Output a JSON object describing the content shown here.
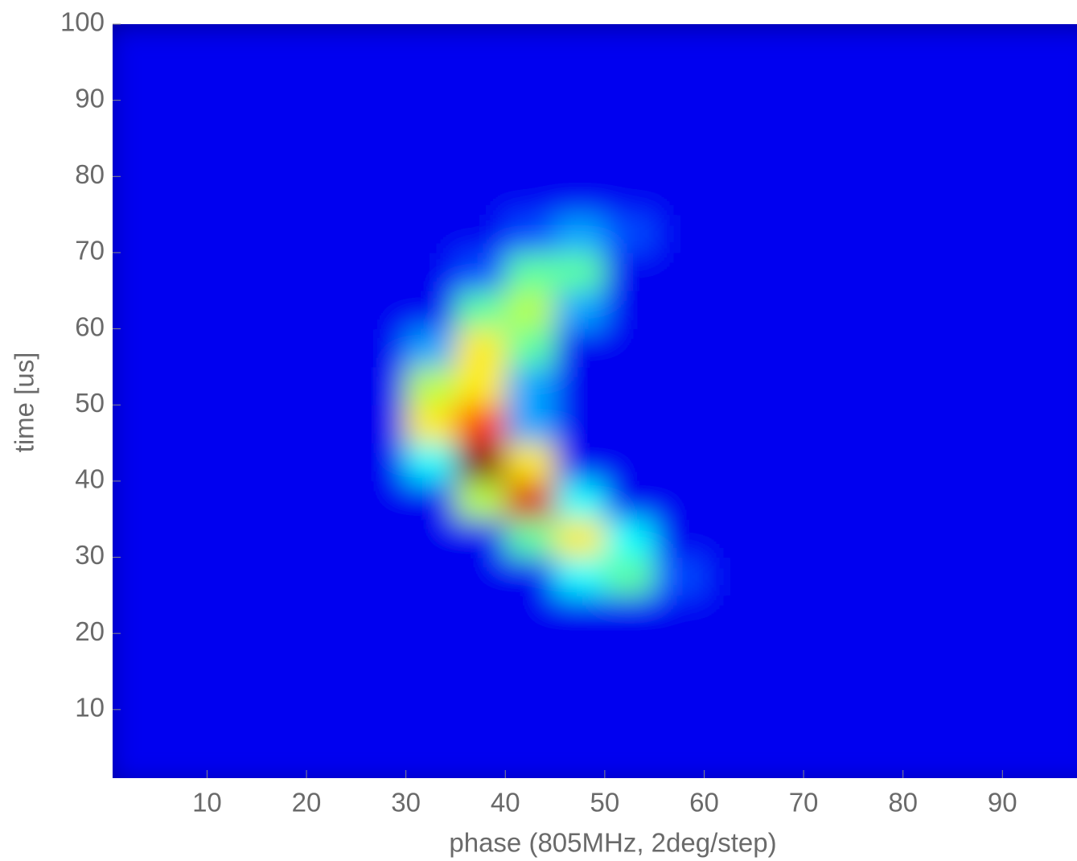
{
  "chart_data": {
    "type": "heatmap",
    "xlabel": "phase (805MHz, 2deg/step)",
    "ylabel": "time [us]",
    "x": [
      2.5,
      7.5,
      12.5,
      17.5,
      22.5,
      27.5,
      32.5,
      37.5,
      42.5,
      47.5,
      52.5,
      57.5,
      62.5,
      67.5,
      72.5,
      77.5,
      82.5,
      87.5,
      92.5,
      97.5
    ],
    "y": [
      2.5,
      7.5,
      12.5,
      17.5,
      22.5,
      27.5,
      32.5,
      37.5,
      42.5,
      47.5,
      52.5,
      57.5,
      62.5,
      67.5,
      72.5,
      77.5,
      82.5,
      87.5,
      92.5,
      97.5
    ],
    "z": [
      [
        0,
        0,
        0,
        0,
        0,
        0,
        0,
        0,
        0,
        0,
        0,
        0,
        0,
        0,
        0,
        0,
        0,
        0,
        0,
        0
      ],
      [
        0,
        0,
        0,
        0,
        0,
        0,
        0,
        0,
        0,
        0,
        0,
        0,
        0,
        0,
        0,
        0,
        0,
        0,
        0,
        0
      ],
      [
        0,
        0,
        0,
        0,
        0,
        0,
        0,
        0,
        0,
        0,
        0,
        0,
        0,
        0,
        0,
        0,
        0,
        0,
        0,
        0
      ],
      [
        0,
        0,
        0,
        0,
        0,
        0,
        0,
        0,
        0,
        0,
        0,
        0,
        0,
        0,
        0,
        0,
        0,
        0,
        0,
        0
      ],
      [
        0,
        0,
        0,
        0,
        0,
        0,
        0,
        0,
        0,
        0,
        0,
        0,
        0,
        0,
        0,
        0,
        0,
        0,
        0,
        0
      ],
      [
        0,
        0,
        0,
        0,
        0,
        0,
        0,
        0,
        0,
        3,
        4,
        1,
        0,
        0,
        0,
        0,
        0,
        0,
        0,
        0
      ],
      [
        0,
        0,
        0,
        0,
        0,
        0,
        0,
        0,
        4,
        6,
        3,
        0,
        0,
        0,
        0,
        0,
        0,
        0,
        0,
        0
      ],
      [
        0,
        0,
        0,
        0,
        0,
        0,
        0,
        5,
        9,
        3,
        0,
        0,
        0,
        0,
        0,
        0,
        0,
        0,
        0,
        0
      ],
      [
        0,
        0,
        0,
        0,
        0,
        0,
        3,
        10,
        6,
        0,
        0,
        0,
        0,
        0,
        0,
        0,
        0,
        0,
        0,
        0
      ],
      [
        0,
        0,
        0,
        0,
        0,
        0,
        6,
        8,
        2,
        0,
        0,
        0,
        0,
        0,
        0,
        0,
        0,
        0,
        0,
        0
      ],
      [
        0,
        0,
        0,
        0,
        0,
        0,
        5,
        6,
        2,
        0,
        0,
        0,
        0,
        0,
        0,
        0,
        0,
        0,
        0,
        0
      ],
      [
        0,
        0,
        0,
        0,
        0,
        0,
        2,
        6,
        4,
        0,
        0,
        0,
        0,
        0,
        0,
        0,
        0,
        0,
        0,
        0
      ],
      [
        0,
        0,
        0,
        0,
        0,
        0,
        0,
        4,
        5,
        2,
        0,
        0,
        0,
        0,
        0,
        0,
        0,
        0,
        0,
        0
      ],
      [
        0,
        0,
        0,
        0,
        0,
        0,
        0,
        1,
        4,
        4,
        0,
        0,
        0,
        0,
        0,
        0,
        0,
        0,
        0,
        0
      ],
      [
        0,
        0,
        0,
        0,
        0,
        0,
        0,
        0,
        1,
        2,
        1,
        0,
        0,
        0,
        0,
        0,
        0,
        0,
        0,
        0
      ],
      [
        0,
        0,
        0,
        0,
        0,
        0,
        0,
        0,
        0,
        0,
        0,
        0,
        0,
        0,
        0,
        0,
        0,
        0,
        0,
        0
      ],
      [
        0,
        0,
        0,
        0,
        0,
        0,
        0,
        0,
        0,
        0,
        0,
        0,
        0,
        0,
        0,
        0,
        0,
        0,
        0,
        0
      ],
      [
        0,
        0,
        0,
        0,
        0,
        0,
        0,
        0,
        0,
        0,
        0,
        0,
        0,
        0,
        0,
        0,
        0,
        0,
        0,
        0
      ],
      [
        0,
        0,
        0,
        0,
        0,
        0,
        0,
        0,
        0,
        0,
        0,
        0,
        0,
        0,
        0,
        0,
        0,
        0,
        0,
        0
      ],
      [
        0,
        0,
        0,
        0,
        0,
        0,
        0,
        0,
        0,
        0,
        0,
        0,
        0,
        0,
        0,
        0,
        0,
        0,
        0,
        0
      ]
    ],
    "colormap": "jet",
    "xlim": [
      0.5,
      97.5
    ],
    "ylim": [
      1,
      100
    ],
    "xticks": [
      10,
      20,
      30,
      40,
      50,
      60,
      70,
      80,
      90
    ],
    "yticks": [
      10,
      20,
      30,
      40,
      50,
      60,
      70,
      80,
      90,
      100
    ]
  }
}
